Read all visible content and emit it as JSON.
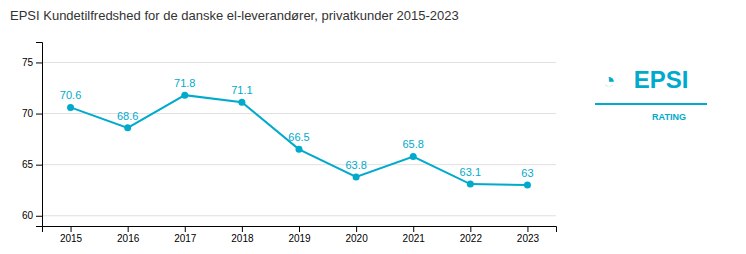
{
  "chart_data": {
    "type": "line",
    "title": "EPSI Kundetilfredshed for de danske el-leverandører, privatkunder 2015-2023",
    "x": [
      2015,
      2016,
      2017,
      2018,
      2019,
      2020,
      2021,
      2022,
      2023
    ],
    "values": [
      70.6,
      68.6,
      71.8,
      71.1,
      66.5,
      63.8,
      65.8,
      63.1,
      63.0
    ],
    "color": "#00AACC",
    "marker": "circle",
    "xlim": [
      2014.5,
      2023.5
    ],
    "xticks": [
      2015,
      2016,
      2017,
      2018,
      2019,
      2020,
      2021,
      2022,
      2023
    ],
    "ylim": [
      59,
      77
    ],
    "yticks": [
      60,
      65,
      70,
      75
    ],
    "grid": true,
    "data_labels": true,
    "annotations": [
      "◔",
      "EPSI",
      "RATING"
    ]
  }
}
